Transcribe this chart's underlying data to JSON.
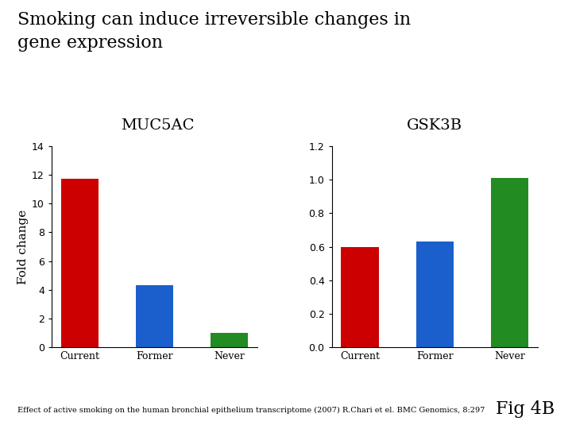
{
  "title_line1": "Smoking can induce irreversible changes in",
  "title_line2": "gene expression",
  "title_fontsize": 16,
  "title_font": "serif",
  "background_color": "#ffffff",
  "left_chart": {
    "subtitle": "MUC5AC",
    "subtitle_fontsize": 14,
    "categories": [
      "Current",
      "Former",
      "Never"
    ],
    "values": [
      11.7,
      4.3,
      1.0
    ],
    "colors": [
      "#cc0000",
      "#1a5fcc",
      "#228B22"
    ],
    "ylim": [
      0,
      14
    ],
    "yticks": [
      0,
      2,
      4,
      6,
      8,
      10,
      12,
      14
    ],
    "ylabel": "Fold change",
    "ylabel_fontsize": 11
  },
  "right_chart": {
    "subtitle": "GSK3B",
    "subtitle_fontsize": 14,
    "categories": [
      "Current",
      "Former",
      "Never"
    ],
    "values": [
      0.6,
      0.63,
      1.01
    ],
    "colors": [
      "#cc0000",
      "#1a5fcc",
      "#228B22"
    ],
    "ylim": [
      0,
      1.2
    ],
    "yticks": [
      0,
      0.2,
      0.4,
      0.6,
      0.8,
      1.0,
      1.2
    ]
  },
  "footnote": "Effect of active smoking on the human bronchial epithelium transcriptome (2007) R.Chari et el. BMC Genomics, 8:297",
  "footnote_fontsize": 7,
  "fig4b_text": "Fig 4B",
  "fig4b_fontsize": 16,
  "tick_fontsize": 9,
  "bar_width": 0.5
}
